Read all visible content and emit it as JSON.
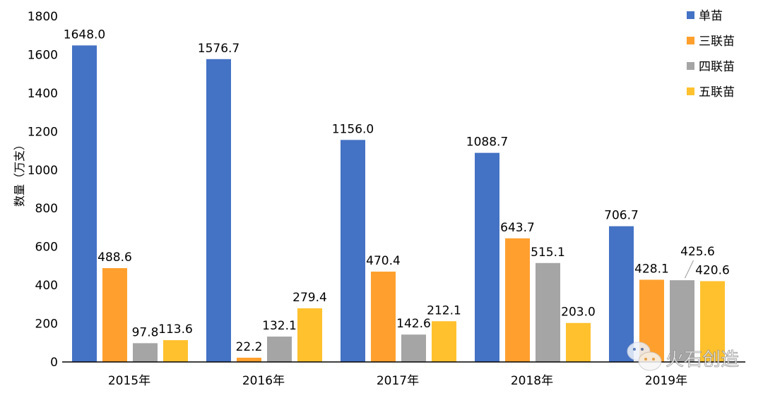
{
  "chart_data": {
    "type": "bar",
    "title": "",
    "xlabel": "",
    "ylabel": "数量（万支）",
    "ylim": [
      0,
      1800
    ],
    "yticks": [
      0,
      200,
      400,
      600,
      800,
      1000,
      1200,
      1400,
      1600,
      1800
    ],
    "grid": false,
    "legend_position": "top-right",
    "categories": [
      "2015年",
      "2016年",
      "2017年",
      "2018年",
      "2019年"
    ],
    "series": [
      {
        "name": "单苗",
        "color": "#4472C4",
        "values": [
          1648.0,
          1576.7,
          1156.0,
          1088.7,
          706.7
        ]
      },
      {
        "name": "三联苗",
        "color": "#FFA02E",
        "values": [
          488.6,
          22.2,
          470.4,
          643.7,
          428.1
        ]
      },
      {
        "name": "四联苗",
        "color": "#A5A5A5",
        "values": [
          97.8,
          132.1,
          142.6,
          515.1,
          425.6
        ]
      },
      {
        "name": "五联苗",
        "color": "#FFC12E",
        "values": [
          113.6,
          279.4,
          212.1,
          203.0,
          420.6
        ]
      }
    ]
  },
  "watermark": "火石创造"
}
